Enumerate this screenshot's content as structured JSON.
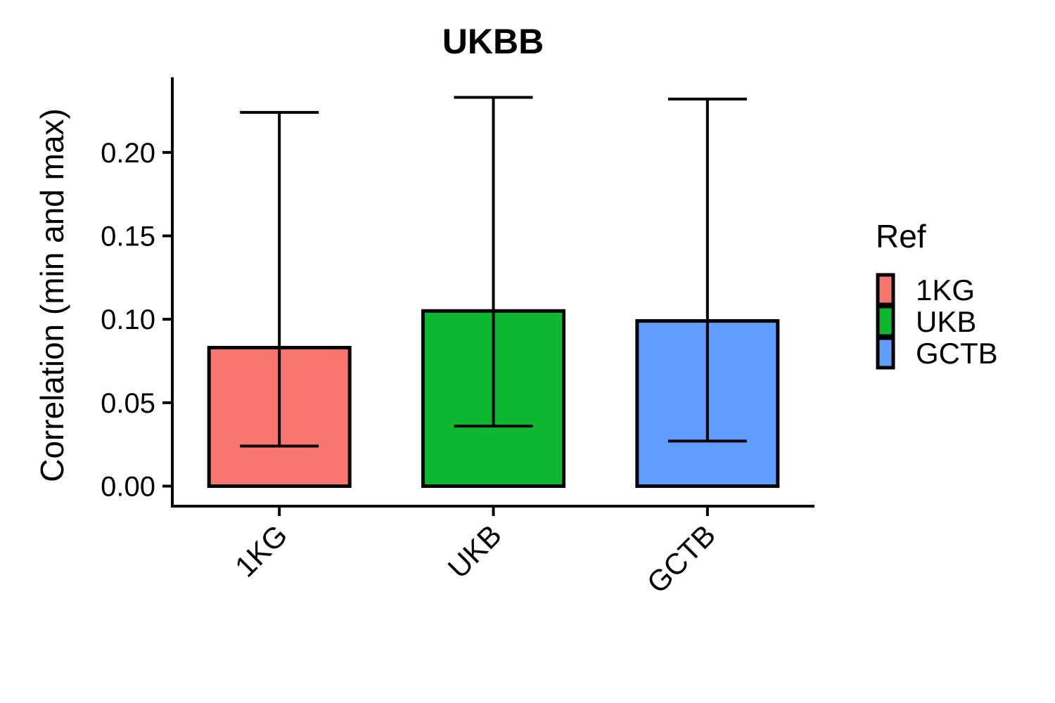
{
  "chart_data": {
    "type": "bar",
    "title": "UKBB",
    "xlabel": "",
    "ylabel": "Correlation (min and max)",
    "categories": [
      "1KG",
      "UKB",
      "GCTB"
    ],
    "values": [
      0.083,
      0.105,
      0.099
    ],
    "error_min": [
      0.024,
      0.036,
      0.027
    ],
    "error_max": [
      0.224,
      0.233,
      0.232
    ],
    "colors": [
      "#F8766D",
      "#0DB730",
      "#619CFF"
    ],
    "ylim": [
      -0.012,
      0.245
    ],
    "yticks": [
      0.0,
      0.05,
      0.1,
      0.15,
      0.2
    ],
    "ytick_labels": [
      "0.00",
      "0.05",
      "0.10",
      "0.15",
      "0.20"
    ],
    "grid": false,
    "legend": {
      "title": "Ref",
      "placement": "right",
      "entries": [
        "1KG",
        "UKB",
        "GCTB"
      ]
    }
  }
}
